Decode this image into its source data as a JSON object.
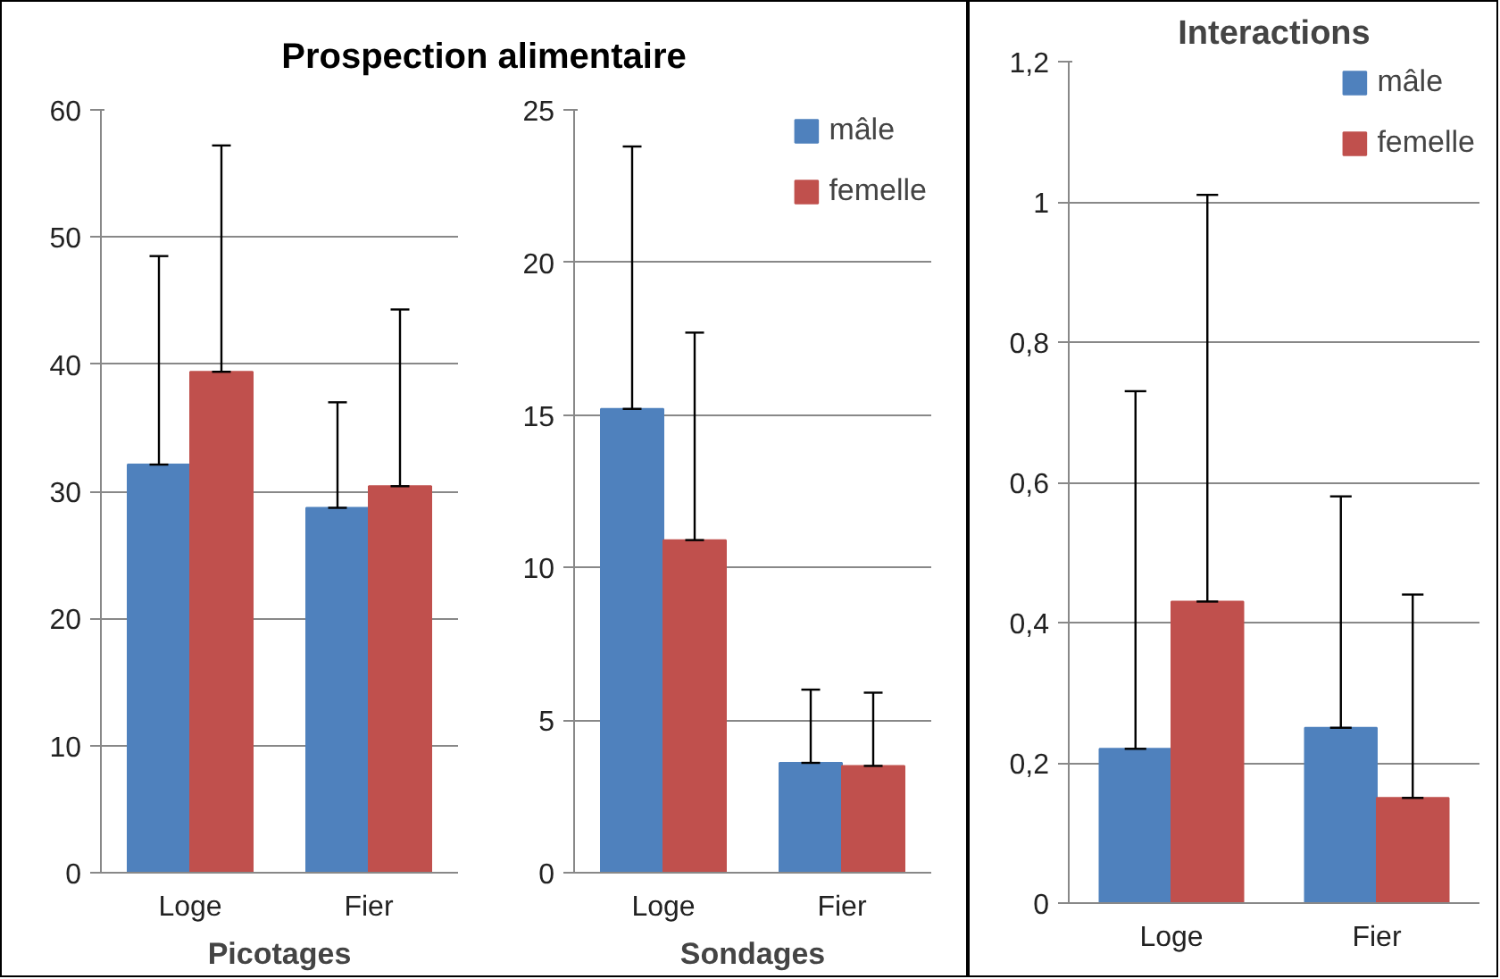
{
  "chart_data": [
    {
      "type": "bar",
      "title": "Prospection alimentaire",
      "xlabel": "Picotages",
      "categories": [
        "Loge",
        "Fier"
      ],
      "ylim": [
        0,
        60
      ],
      "yticks": [
        0,
        10,
        20,
        30,
        40,
        50,
        60
      ],
      "grid": "y",
      "legend": false,
      "series": [
        {
          "color": "#4f81bd",
          "values": [
            32.1,
            28.7
          ],
          "errors": [
            [
              32.1,
              48.5
            ],
            [
              28.7,
              37.0
            ]
          ]
        },
        {
          "color": "#c0504d",
          "values": [
            39.4,
            30.4
          ],
          "errors": [
            [
              39.4,
              57.2
            ],
            [
              30.4,
              44.3
            ]
          ]
        }
      ]
    },
    {
      "type": "bar",
      "xlabel": "Sondages",
      "categories": [
        "Loge",
        "Fier"
      ],
      "ylim": [
        0,
        25
      ],
      "yticks": [
        0,
        5,
        10,
        15,
        20,
        25
      ],
      "grid": "y",
      "legend": "top right",
      "series": [
        {
          "name": "mâle",
          "color": "#4f81bd",
          "values": [
            15.2,
            3.6
          ],
          "errors": [
            [
              15.2,
              23.8
            ],
            [
              3.6,
              6.0
            ]
          ]
        },
        {
          "name": "femelle",
          "color": "#c0504d",
          "values": [
            10.9,
            3.5
          ],
          "errors": [
            [
              10.9,
              17.7
            ],
            [
              3.5,
              5.9
            ]
          ]
        }
      ]
    },
    {
      "type": "bar",
      "title": "Interactions",
      "categories": [
        "Loge",
        "Fier"
      ],
      "ylim": [
        0,
        1.2
      ],
      "yticks": [
        0,
        {
          "value": 0.2,
          "label": "0,2"
        },
        {
          "value": 0.4,
          "label": "0,4"
        },
        {
          "value": 0.6,
          "label": "0,6"
        },
        {
          "value": 0.8,
          "label": "0,8"
        },
        1,
        {
          "value": 1.2,
          "label": "1,2"
        }
      ],
      "grid": "y",
      "legend": "top right",
      "series": [
        {
          "name": "mâle",
          "color": "#4f81bd",
          "values": [
            0.22,
            0.25
          ],
          "errors": [
            [
              0.22,
              0.73
            ],
            [
              0.25,
              0.58
            ]
          ]
        },
        {
          "name": "femelle",
          "color": "#c0504d",
          "values": [
            0.43,
            0.15
          ],
          "errors": [
            [
              0.43,
              1.01
            ],
            [
              0.15,
              0.44
            ]
          ]
        }
      ]
    }
  ]
}
